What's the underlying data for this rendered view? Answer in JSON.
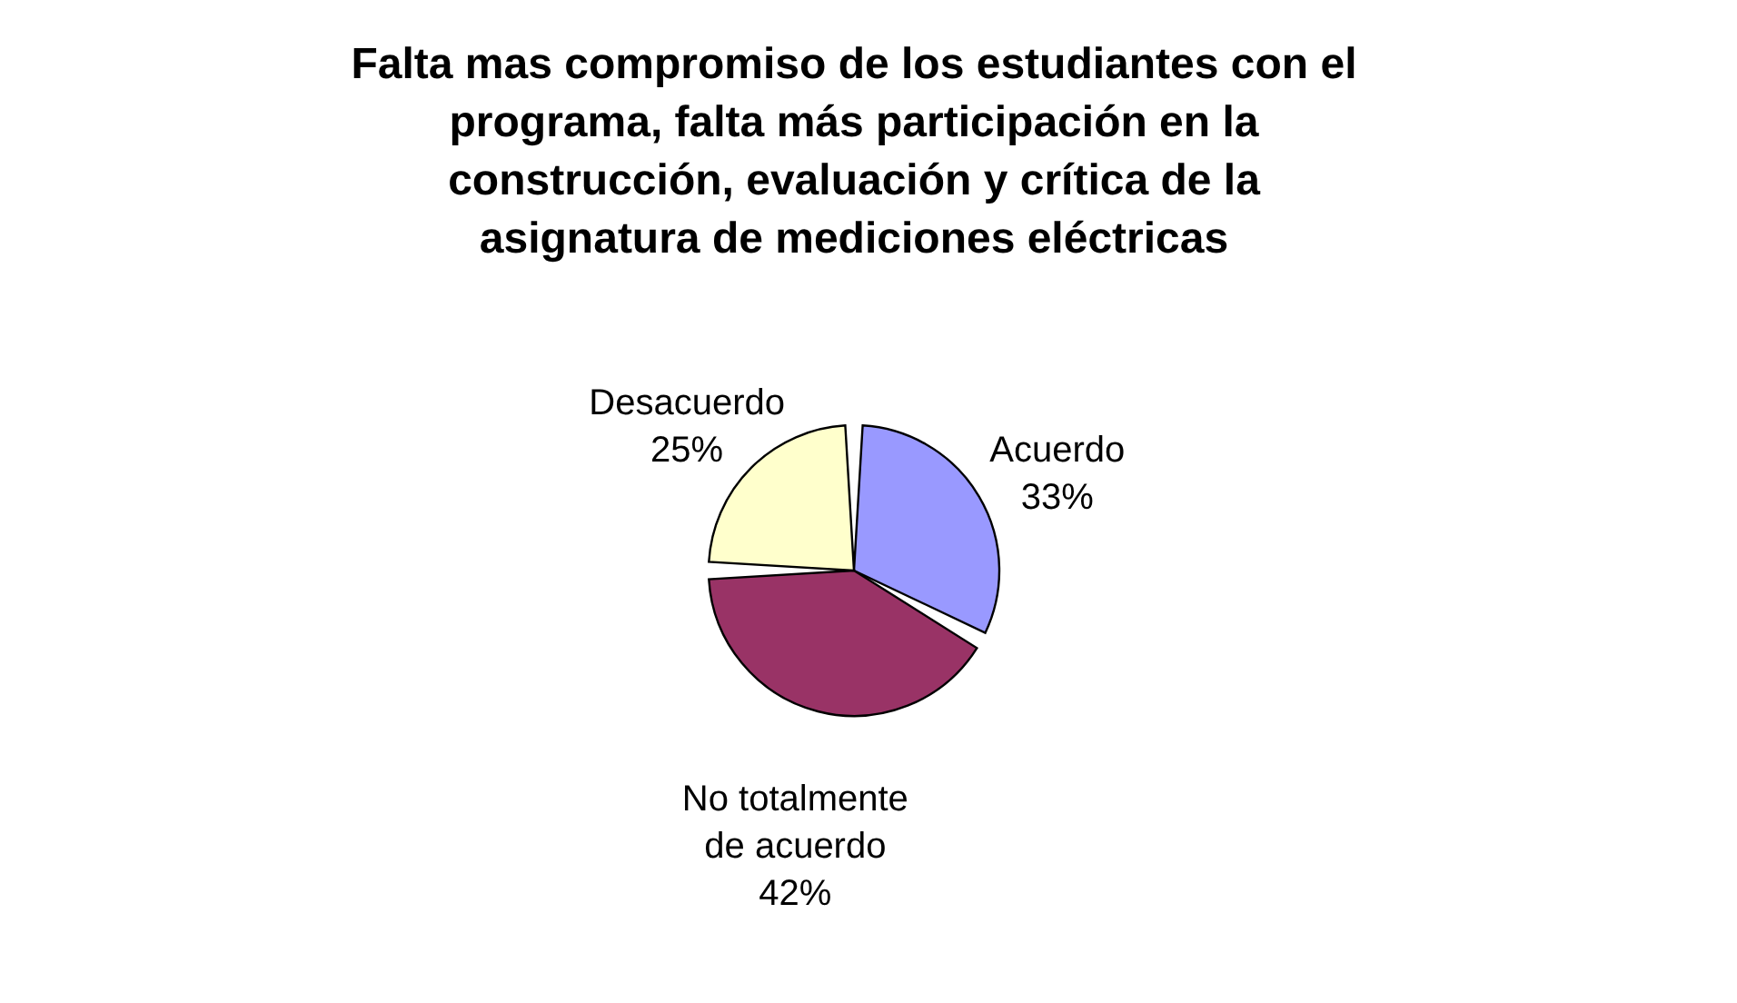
{
  "chart_data": {
    "type": "pie",
    "title": "Falta mas compromiso de los estudiantes con el programa, falta más participación en la construcción, evaluación y crítica de la asignatura de mediciones eléctricas",
    "categories": [
      "Acuerdo",
      "No totalmente de acuerdo",
      "Desacuerdo"
    ],
    "values": [
      33,
      42,
      25
    ],
    "value_labels": [
      "33%",
      "42%",
      "25%"
    ],
    "colors": [
      "#9999ff",
      "#993366",
      "#ffffcc"
    ],
    "legend": false
  }
}
